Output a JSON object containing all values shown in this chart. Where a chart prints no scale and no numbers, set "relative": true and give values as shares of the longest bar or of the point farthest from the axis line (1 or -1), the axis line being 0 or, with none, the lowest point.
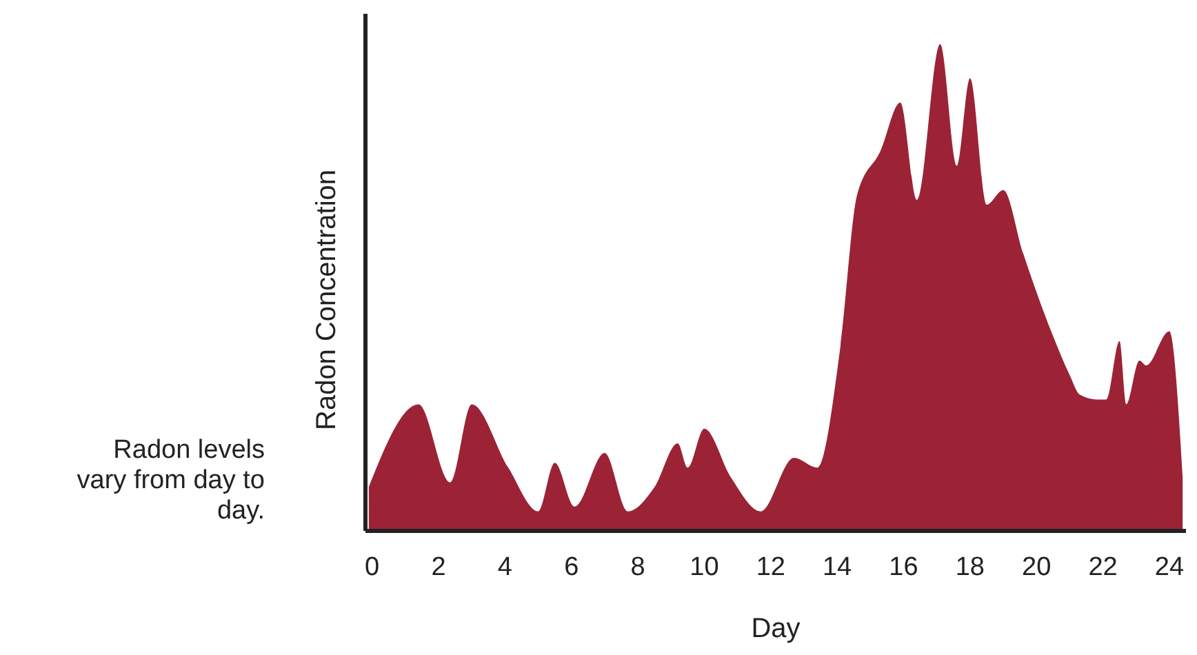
{
  "chart_data": {
    "type": "area",
    "relative": true,
    "xlabel": "Day",
    "ylabel": "Radon Concentration",
    "annotations": [
      "Radon levels vary from day to day."
    ],
    "xlim": [
      -0.2,
      24.5
    ],
    "xticks": [
      0,
      2,
      4,
      6,
      8,
      10,
      12,
      14,
      16,
      18,
      20,
      22,
      24
    ],
    "series": [
      {
        "color": "#9b2335",
        "x": [
          -0.1,
          1.4,
          2.35,
          3.0,
          4.1,
          5.0,
          5.5,
          6.1,
          7.0,
          7.7,
          8.5,
          9.2,
          9.5,
          10.0,
          10.8,
          11.7,
          12.7,
          13.4,
          14.1,
          14.6,
          15.3,
          15.9,
          16.4,
          17.1,
          17.6,
          18.0,
          18.5,
          19.0,
          19.6,
          20.5,
          21.0,
          21.3,
          21.8,
          22.1,
          22.5,
          22.7,
          23.1,
          23.3,
          24.0,
          24.4
        ],
        "values": [
          0.09,
          0.26,
          0.1,
          0.26,
          0.13,
          0.04,
          0.14,
          0.05,
          0.16,
          0.04,
          0.09,
          0.18,
          0.13,
          0.21,
          0.11,
          0.04,
          0.15,
          0.13,
          0.38,
          0.69,
          0.78,
          0.88,
          0.68,
          1.0,
          0.75,
          0.93,
          0.67,
          0.7,
          0.57,
          0.4,
          0.32,
          0.28,
          0.27,
          0.27,
          0.39,
          0.26,
          0.35,
          0.34,
          0.41,
          0.11
        ]
      }
    ],
    "grid": false
  }
}
